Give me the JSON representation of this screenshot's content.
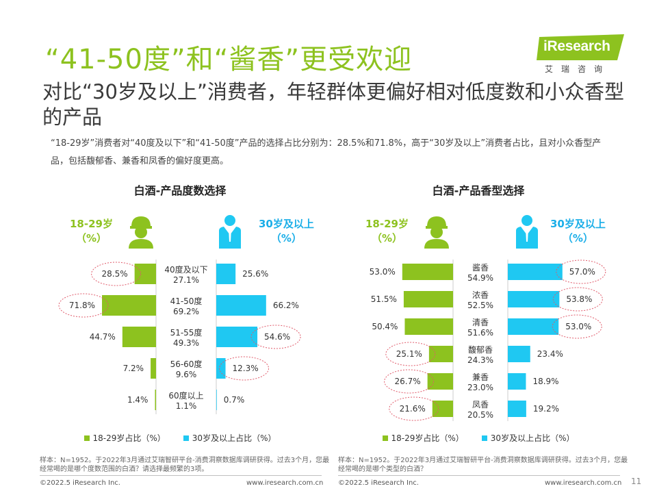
{
  "header": {
    "title": "“41-50度”和“酱香”更受欢迎",
    "subtitle": "对比“30岁及以上”消费者，年轻群体更偏好相对低度数和小众香型的产品",
    "summary": "“18-29岁”消费者对“40度及以下”和“41-50度”产品的选择占比分别为：28.5%和71.8%，高于“30岁及以上”消费者占比，且对小众香型产品，包括馥郁香、兼香和凤香的偏好度更高。"
  },
  "logo": {
    "word": "iResearch",
    "subtitle": "艾瑞咨询"
  },
  "colors": {
    "green": "#8dc21f",
    "blue": "#1fc8f2",
    "highlight": "#e05a6a"
  },
  "left_panel": {
    "young_label": "18-29岁\n（%）",
    "older_label": "30岁及以上\n（%）",
    "legend": [
      "18-29岁占比（%）",
      "30岁及以上占比（%）"
    ],
    "note": "样本：N=1952。于2022年3月通过艾瑞智研平台-消费洞察数据库调研获得。过去3个月，您最经常喝的是哪个度数范围的白酒？请选择最频繁的3项。",
    "footer_left": "©2022.5 iResearch Inc.",
    "footer_right": "www.iresearch.com.cn"
  },
  "right_panel": {
    "young_label": "18-29岁\n（%）",
    "older_label": "30岁及以上\n（%）",
    "legend": [
      "18-29岁占比（%）",
      "30岁及以上占比（%）"
    ],
    "note": "样本：N=1952。于2022年3月通过艾瑞智研平台-消费洞察数据库调研获得。过去3个月，您最经常喝的是哪个类型的白酒？",
    "footer_left": "©2022.5 iResearch Inc.",
    "footer_right": "www.iresearch.com.cn"
  },
  "page_number": "11",
  "chart_data": [
    {
      "type": "bar",
      "title": "白酒-产品度数选择",
      "categories": [
        "40度及以下",
        "41-50度",
        "51-55度",
        "56-60度",
        "60度以上"
      ],
      "overall": [
        "27.1%",
        "69.2%",
        "49.3%",
        "9.6%",
        "1.1%"
      ],
      "series": [
        {
          "name": "18-29岁占比（%）",
          "values": [
            28.5,
            71.8,
            44.7,
            7.2,
            1.4
          ]
        },
        {
          "name": "30岁及以上占比（%）",
          "values": [
            25.6,
            66.2,
            54.6,
            12.3,
            0.7
          ]
        }
      ],
      "highlighted": {
        "young": [
          0,
          1
        ],
        "older": [
          2,
          3
        ]
      },
      "legend_position": "bottom"
    },
    {
      "type": "bar",
      "title": "白酒-产品香型选择",
      "categories": [
        "酱香",
        "浓香",
        "清香",
        "馥郁香",
        "兼香",
        "凤香"
      ],
      "overall": [
        "54.9%",
        "52.5%",
        "51.6%",
        "24.3%",
        "23.0%",
        "20.5%"
      ],
      "series": [
        {
          "name": "18-29岁占比（%）",
          "values": [
            53.0,
            51.5,
            50.4,
            25.1,
            26.7,
            21.6
          ]
        },
        {
          "name": "30岁及以上占比（%）",
          "values": [
            57.0,
            53.8,
            53.0,
            23.4,
            18.9,
            19.2
          ]
        }
      ],
      "highlighted": {
        "young": [
          3,
          4,
          5
        ],
        "older": [
          0,
          1,
          2
        ]
      },
      "legend_position": "bottom"
    }
  ]
}
